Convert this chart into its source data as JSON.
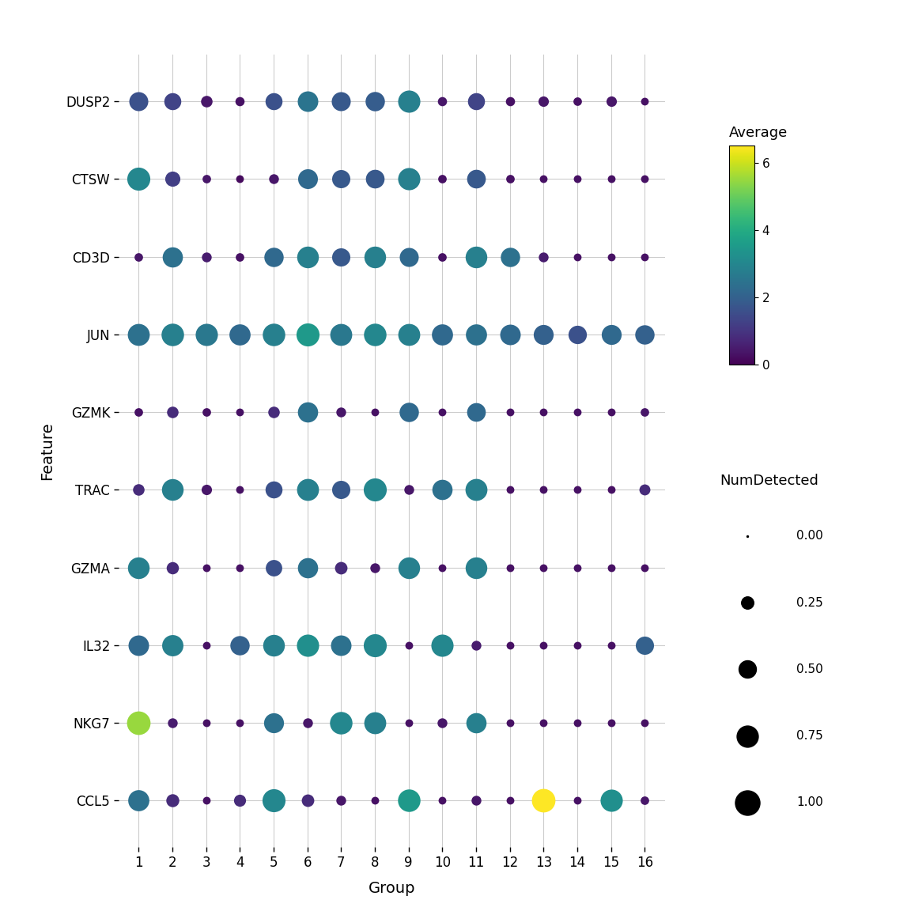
{
  "genes": [
    "DUSP2",
    "CTSW",
    "CD3D",
    "JUN",
    "GZMK",
    "TRAC",
    "GZMA",
    "IL32",
    "NKG7",
    "CCL5"
  ],
  "groups": [
    1,
    2,
    3,
    4,
    5,
    6,
    7,
    8,
    9,
    10,
    11,
    12,
    13,
    14,
    15,
    16
  ],
  "avg_expression": {
    "DUSP2": [
      1.6,
      1.3,
      0.4,
      0.3,
      1.6,
      2.5,
      1.8,
      1.9,
      2.8,
      0.4,
      1.3,
      0.3,
      0.4,
      0.3,
      0.4,
      0.3
    ],
    "CTSW": [
      3.0,
      1.2,
      0.4,
      0.2,
      0.4,
      2.2,
      1.8,
      1.8,
      2.8,
      0.3,
      1.8,
      0.3,
      0.3,
      0.3,
      0.3,
      0.3
    ],
    "CD3D": [
      0.4,
      2.4,
      0.5,
      0.3,
      2.2,
      2.8,
      1.8,
      2.8,
      2.2,
      0.3,
      2.8,
      2.4,
      0.5,
      0.3,
      0.3,
      0.3
    ],
    "JUN": [
      2.4,
      2.8,
      2.6,
      2.2,
      2.8,
      3.5,
      2.6,
      3.0,
      2.8,
      2.2,
      2.4,
      2.2,
      2.0,
      1.6,
      2.2,
      2.0
    ],
    "GZMK": [
      0.3,
      0.8,
      0.3,
      0.3,
      0.8,
      2.4,
      0.4,
      0.3,
      2.2,
      0.3,
      2.2,
      0.3,
      0.3,
      0.3,
      0.3,
      0.4
    ],
    "TRAC": [
      0.8,
      2.8,
      0.4,
      0.3,
      1.6,
      2.8,
      1.8,
      3.0,
      0.4,
      2.4,
      2.8,
      0.3,
      0.3,
      0.3,
      0.3,
      0.8
    ],
    "GZMA": [
      2.8,
      0.8,
      0.3,
      0.3,
      1.6,
      2.4,
      0.8,
      0.4,
      2.8,
      0.3,
      2.8,
      0.3,
      0.3,
      0.3,
      0.3,
      0.3
    ],
    "IL32": [
      2.2,
      2.8,
      0.3,
      2.0,
      2.8,
      3.2,
      2.4,
      3.0,
      0.3,
      3.0,
      0.5,
      0.3,
      0.3,
      0.3,
      0.3,
      2.0
    ],
    "NKG7": [
      5.5,
      0.5,
      0.3,
      0.3,
      2.4,
      0.4,
      3.0,
      2.8,
      0.3,
      0.4,
      2.8,
      0.3,
      0.3,
      0.3,
      0.3,
      0.3
    ],
    "CCL5": [
      2.4,
      0.8,
      0.3,
      0.8,
      3.0,
      0.8,
      0.4,
      0.3,
      3.5,
      0.3,
      0.4,
      0.3,
      6.5,
      0.3,
      3.2,
      0.4
    ]
  },
  "num_detected": {
    "DUSP2": [
      0.6,
      0.48,
      0.22,
      0.14,
      0.48,
      0.7,
      0.6,
      0.62,
      0.82,
      0.14,
      0.48,
      0.14,
      0.18,
      0.12,
      0.18,
      0.1
    ],
    "CTSW": [
      0.88,
      0.38,
      0.12,
      0.1,
      0.16,
      0.65,
      0.55,
      0.58,
      0.82,
      0.12,
      0.58,
      0.12,
      0.1,
      0.1,
      0.1,
      0.1
    ],
    "CD3D": [
      0.12,
      0.68,
      0.16,
      0.12,
      0.62,
      0.78,
      0.55,
      0.78,
      0.6,
      0.12,
      0.78,
      0.62,
      0.16,
      0.1,
      0.1,
      0.1
    ],
    "JUN": [
      0.8,
      0.84,
      0.82,
      0.74,
      0.84,
      0.88,
      0.8,
      0.84,
      0.8,
      0.74,
      0.74,
      0.7,
      0.66,
      0.56,
      0.66,
      0.62
    ],
    "GZMK": [
      0.12,
      0.22,
      0.12,
      0.1,
      0.22,
      0.68,
      0.16,
      0.1,
      0.62,
      0.1,
      0.58,
      0.1,
      0.1,
      0.1,
      0.1,
      0.12
    ],
    "TRAC": [
      0.22,
      0.78,
      0.18,
      0.1,
      0.48,
      0.8,
      0.55,
      0.88,
      0.16,
      0.68,
      0.8,
      0.1,
      0.1,
      0.1,
      0.1,
      0.2
    ],
    "GZMA": [
      0.78,
      0.25,
      0.1,
      0.1,
      0.45,
      0.68,
      0.26,
      0.16,
      0.78,
      0.1,
      0.78,
      0.1,
      0.1,
      0.1,
      0.1,
      0.1
    ],
    "IL32": [
      0.7,
      0.75,
      0.1,
      0.62,
      0.78,
      0.82,
      0.7,
      0.88,
      0.1,
      0.82,
      0.16,
      0.1,
      0.1,
      0.1,
      0.1,
      0.55
    ],
    "NKG7": [
      0.92,
      0.16,
      0.1,
      0.1,
      0.66,
      0.16,
      0.84,
      0.8,
      0.1,
      0.16,
      0.68,
      0.1,
      0.1,
      0.1,
      0.1,
      0.1
    ],
    "CCL5": [
      0.74,
      0.28,
      0.1,
      0.24,
      0.88,
      0.26,
      0.16,
      0.1,
      0.84,
      0.1,
      0.16,
      0.1,
      0.92,
      0.1,
      0.82,
      0.12
    ]
  },
  "colormap": "viridis",
  "vmin": 0,
  "vmax": 6.5,
  "max_dot_size": 500,
  "xlabel": "Group",
  "ylabel": "Feature",
  "background_color": "#ffffff",
  "grid_color": "#cccccc",
  "legend_avg_title": "Average",
  "legend_size_title": "NumDetected",
  "legend_avg_ticks": [
    0,
    2,
    4,
    6
  ],
  "legend_size_values": [
    0.0,
    0.25,
    0.5,
    0.75,
    1.0
  ]
}
